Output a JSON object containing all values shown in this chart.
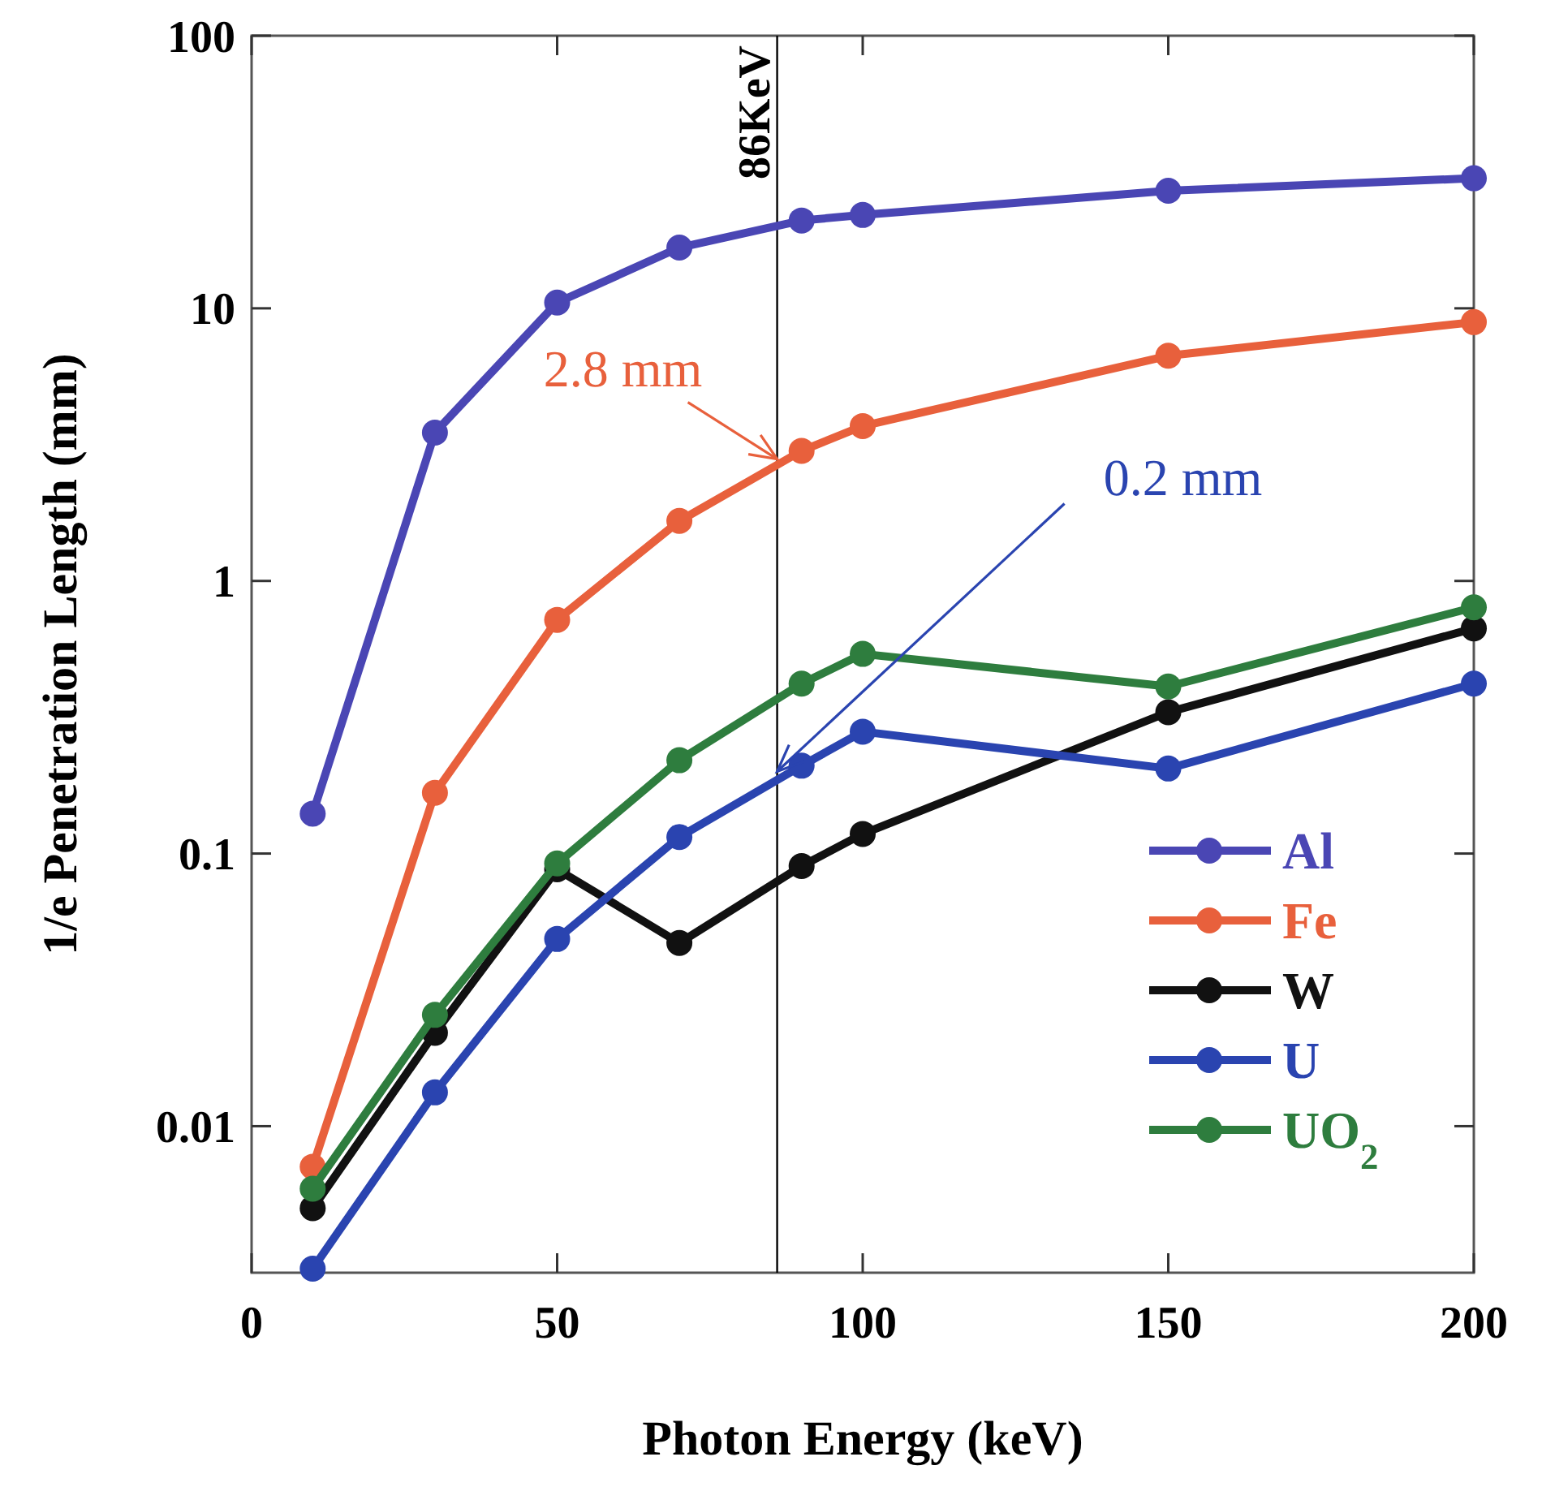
{
  "chart_data": {
    "type": "line",
    "xlabel": "Photon Energy (keV)",
    "ylabel": "1/e Penetration Length (mm)",
    "x": [
      10,
      30,
      50,
      70,
      90,
      100,
      150,
      200
    ],
    "series": [
      {
        "name": "Al",
        "color": "#4a46b4",
        "values": [
          0.14,
          3.5,
          10.5,
          16.7,
          21,
          22,
          27,
          30
        ]
      },
      {
        "name": "Fe",
        "color": "#e8603c",
        "values": [
          0.0071,
          0.167,
          0.72,
          1.66,
          3.0,
          3.7,
          6.7,
          8.9
        ]
      },
      {
        "name": "W",
        "color": "#111111",
        "values": [
          0.005,
          0.022,
          0.0875,
          0.047,
          0.09,
          0.118,
          0.33,
          0.67
        ]
      },
      {
        "name": "U",
        "color": "#2a44b0",
        "values": [
          0.003,
          0.0133,
          0.0486,
          0.115,
          0.21,
          0.28,
          0.205,
          0.42
        ]
      },
      {
        "name": "UO$_{2}$",
        "color": "#2e7d3e",
        "values": [
          0.0059,
          0.0256,
          0.092,
          0.22,
          0.42,
          0.54,
          0.41,
          0.8
        ]
      }
    ],
    "xlim": [
      0,
      200
    ],
    "xticks": [
      0,
      50,
      100,
      150,
      200
    ],
    "ylim": [
      0.0029,
      100
    ],
    "yticks": [
      0.01,
      0.1,
      1,
      10,
      100
    ],
    "log": "y",
    "marker": "circle",
    "line_style": "solid",
    "grid": false,
    "legend": "bottom right",
    "ref_lines": [
      {
        "axis": "x",
        "value": 86,
        "label": "86KeV",
        "color": "#000000"
      }
    ],
    "annotations": [
      {
        "text": "2.8 mm",
        "x": 86,
        "y": 2.8
      },
      {
        "text": "0.2 mm",
        "x": 86,
        "y": 0.2
      }
    ]
  }
}
